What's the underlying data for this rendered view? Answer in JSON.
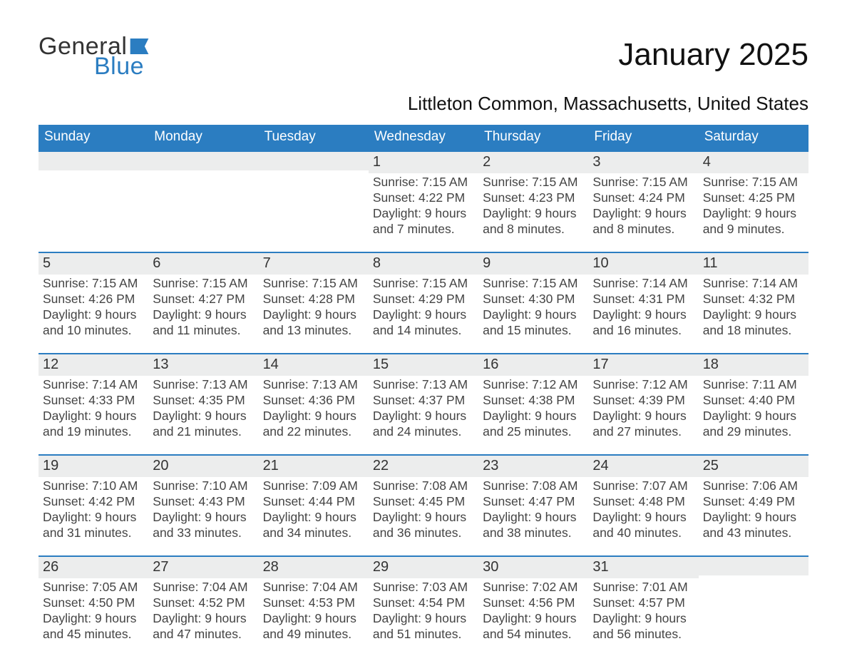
{
  "logo": {
    "text1": "General",
    "text2": "Blue",
    "flag_color": "#2b7dc1"
  },
  "title": "January 2025",
  "subtitle": "Littleton Common, Massachusetts, United States",
  "colors": {
    "accent": "#2b7dc1",
    "header_text": "#ffffff",
    "row_alt": "#eceded",
    "background": "#ffffff"
  },
  "day_names": [
    "Sunday",
    "Monday",
    "Tuesday",
    "Wednesday",
    "Thursday",
    "Friday",
    "Saturday"
  ],
  "weeks": [
    [
      null,
      null,
      null,
      {
        "n": "1",
        "sr": "7:15 AM",
        "ss": "4:22 PM",
        "dl": "9 hours and 7 minutes."
      },
      {
        "n": "2",
        "sr": "7:15 AM",
        "ss": "4:23 PM",
        "dl": "9 hours and 8 minutes."
      },
      {
        "n": "3",
        "sr": "7:15 AM",
        "ss": "4:24 PM",
        "dl": "9 hours and 8 minutes."
      },
      {
        "n": "4",
        "sr": "7:15 AM",
        "ss": "4:25 PM",
        "dl": "9 hours and 9 minutes."
      }
    ],
    [
      {
        "n": "5",
        "sr": "7:15 AM",
        "ss": "4:26 PM",
        "dl": "9 hours and 10 minutes."
      },
      {
        "n": "6",
        "sr": "7:15 AM",
        "ss": "4:27 PM",
        "dl": "9 hours and 11 minutes."
      },
      {
        "n": "7",
        "sr": "7:15 AM",
        "ss": "4:28 PM",
        "dl": "9 hours and 13 minutes."
      },
      {
        "n": "8",
        "sr": "7:15 AM",
        "ss": "4:29 PM",
        "dl": "9 hours and 14 minutes."
      },
      {
        "n": "9",
        "sr": "7:15 AM",
        "ss": "4:30 PM",
        "dl": "9 hours and 15 minutes."
      },
      {
        "n": "10",
        "sr": "7:14 AM",
        "ss": "4:31 PM",
        "dl": "9 hours and 16 minutes."
      },
      {
        "n": "11",
        "sr": "7:14 AM",
        "ss": "4:32 PM",
        "dl": "9 hours and 18 minutes."
      }
    ],
    [
      {
        "n": "12",
        "sr": "7:14 AM",
        "ss": "4:33 PM",
        "dl": "9 hours and 19 minutes."
      },
      {
        "n": "13",
        "sr": "7:13 AM",
        "ss": "4:35 PM",
        "dl": "9 hours and 21 minutes."
      },
      {
        "n": "14",
        "sr": "7:13 AM",
        "ss": "4:36 PM",
        "dl": "9 hours and 22 minutes."
      },
      {
        "n": "15",
        "sr": "7:13 AM",
        "ss": "4:37 PM",
        "dl": "9 hours and 24 minutes."
      },
      {
        "n": "16",
        "sr": "7:12 AM",
        "ss": "4:38 PM",
        "dl": "9 hours and 25 minutes."
      },
      {
        "n": "17",
        "sr": "7:12 AM",
        "ss": "4:39 PM",
        "dl": "9 hours and 27 minutes."
      },
      {
        "n": "18",
        "sr": "7:11 AM",
        "ss": "4:40 PM",
        "dl": "9 hours and 29 minutes."
      }
    ],
    [
      {
        "n": "19",
        "sr": "7:10 AM",
        "ss": "4:42 PM",
        "dl": "9 hours and 31 minutes."
      },
      {
        "n": "20",
        "sr": "7:10 AM",
        "ss": "4:43 PM",
        "dl": "9 hours and 33 minutes."
      },
      {
        "n": "21",
        "sr": "7:09 AM",
        "ss": "4:44 PM",
        "dl": "9 hours and 34 minutes."
      },
      {
        "n": "22",
        "sr": "7:08 AM",
        "ss": "4:45 PM",
        "dl": "9 hours and 36 minutes."
      },
      {
        "n": "23",
        "sr": "7:08 AM",
        "ss": "4:47 PM",
        "dl": "9 hours and 38 minutes."
      },
      {
        "n": "24",
        "sr": "7:07 AM",
        "ss": "4:48 PM",
        "dl": "9 hours and 40 minutes."
      },
      {
        "n": "25",
        "sr": "7:06 AM",
        "ss": "4:49 PM",
        "dl": "9 hours and 43 minutes."
      }
    ],
    [
      {
        "n": "26",
        "sr": "7:05 AM",
        "ss": "4:50 PM",
        "dl": "9 hours and 45 minutes."
      },
      {
        "n": "27",
        "sr": "7:04 AM",
        "ss": "4:52 PM",
        "dl": "9 hours and 47 minutes."
      },
      {
        "n": "28",
        "sr": "7:04 AM",
        "ss": "4:53 PM",
        "dl": "9 hours and 49 minutes."
      },
      {
        "n": "29",
        "sr": "7:03 AM",
        "ss": "4:54 PM",
        "dl": "9 hours and 51 minutes."
      },
      {
        "n": "30",
        "sr": "7:02 AM",
        "ss": "4:56 PM",
        "dl": "9 hours and 54 minutes."
      },
      {
        "n": "31",
        "sr": "7:01 AM",
        "ss": "4:57 PM",
        "dl": "9 hours and 56 minutes."
      },
      null
    ]
  ],
  "labels": {
    "sunrise": "Sunrise: ",
    "sunset": "Sunset: ",
    "daylight": "Daylight: "
  }
}
